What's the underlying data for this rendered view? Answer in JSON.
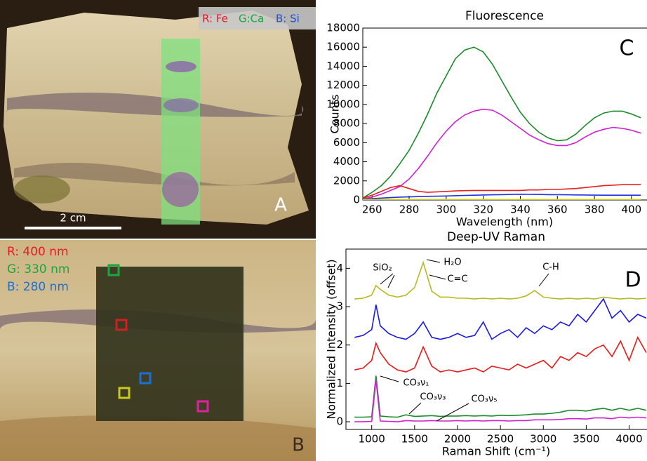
{
  "panels": {
    "a": {
      "label": "A",
      "scale_bar": "2 cm",
      "legend": [
        "R: Fe",
        "G:Ca",
        "B: Si"
      ]
    },
    "b": {
      "label": "B",
      "legend": [
        "R: 400 nm",
        "G: 330 nm",
        "B: 280 nm"
      ]
    }
  },
  "chart_data": [
    {
      "type": "line",
      "title": "Fluorescence",
      "panel_label": "C",
      "x_label": "Wavelength (nm)",
      "y_label": "Counts",
      "xlim": [
        255,
        408
      ],
      "ylim": [
        0,
        18000
      ],
      "xticks": [
        260,
        280,
        300,
        320,
        340,
        360,
        380,
        400
      ],
      "yticks": [
        0,
        2000,
        4000,
        6000,
        8000,
        10000,
        12000,
        14000,
        16000,
        18000
      ],
      "x": [
        255,
        260,
        265,
        270,
        275,
        280,
        285,
        290,
        295,
        300,
        305,
        310,
        315,
        320,
        325,
        330,
        335,
        340,
        345,
        350,
        355,
        360,
        365,
        370,
        375,
        380,
        385,
        390,
        395,
        400,
        405
      ],
      "series": [
        {
          "color": "#1a8a2a",
          "values": [
            200,
            800,
            1500,
            2500,
            3800,
            5200,
            7000,
            9000,
            11200,
            13000,
            14800,
            15700,
            16000,
            15500,
            14200,
            12500,
            10800,
            9200,
            8000,
            7100,
            6500,
            6200,
            6300,
            6900,
            7800,
            8600,
            9100,
            9300,
            9300,
            9000,
            8600
          ]
        },
        {
          "color": "#d020d0",
          "values": [
            100,
            300,
            600,
            1000,
            1400,
            2200,
            3300,
            4600,
            6000,
            7200,
            8200,
            8900,
            9300,
            9500,
            9400,
            8900,
            8200,
            7500,
            6800,
            6300,
            5900,
            5700,
            5700,
            6000,
            6600,
            7100,
            7400,
            7600,
            7500,
            7300,
            7000
          ]
        },
        {
          "color": "#e82020",
          "values": [
            200,
            500,
            900,
            1300,
            1500,
            1200,
            900,
            800,
            850,
            900,
            950,
            980,
            1000,
            1000,
            1000,
            1000,
            1000,
            1000,
            1050,
            1050,
            1100,
            1100,
            1150,
            1200,
            1300,
            1400,
            1500,
            1550,
            1600,
            1600,
            1600
          ]
        },
        {
          "color": "#2030e0",
          "values": [
            100,
            150,
            200,
            250,
            300,
            320,
            350,
            380,
            400,
            420,
            450,
            480,
            500,
            520,
            540,
            560,
            580,
            600,
            590,
            580,
            560,
            550,
            540,
            530,
            520,
            510,
            500,
            500,
            500,
            500,
            500
          ]
        },
        {
          "color": "#c8c820",
          "values": [
            50,
            50,
            50,
            50,
            50,
            50,
            50,
            50,
            50,
            50,
            50,
            50,
            50,
            50,
            50,
            50,
            50,
            50,
            50,
            50,
            50,
            50,
            50,
            50,
            50,
            50,
            50,
            50,
            50,
            50,
            50
          ]
        }
      ]
    },
    {
      "type": "line",
      "title": "Deep-UV Raman",
      "panel_label": "D",
      "x_label": "Raman Shift (cm⁻¹)",
      "y_label": "Normalized Intensity (offset)",
      "xlim": [
        700,
        4200
      ],
      "ylim": [
        -0.2,
        4.5
      ],
      "xticks": [
        1000,
        1500,
        2000,
        2500,
        3000,
        3500,
        4000
      ],
      "yticks": [
        0,
        1,
        2,
        3,
        4
      ],
      "annotations": [
        "SiO₂",
        "H₂O",
        "C=C",
        "C-H",
        "CO₃ν₁",
        "CO₃ν₃",
        "CO₃ν₅"
      ],
      "x": [
        800,
        900,
        1000,
        1050,
        1100,
        1200,
        1300,
        1400,
        1500,
        1600,
        1700,
        1800,
        1900,
        2000,
        2100,
        2200,
        2300,
        2400,
        2500,
        2600,
        2700,
        2800,
        2900,
        3000,
        3100,
        3200,
        3300,
        3400,
        3500,
        3600,
        3700,
        3800,
        3900,
        4000,
        4100,
        4200
      ],
      "series": [
        {
          "color": "#b8b820",
          "values": [
            3.2,
            3.22,
            3.3,
            3.55,
            3.45,
            3.3,
            3.25,
            3.3,
            3.5,
            4.15,
            3.4,
            3.25,
            3.25,
            3.22,
            3.22,
            3.2,
            3.22,
            3.2,
            3.22,
            3.2,
            3.22,
            3.28,
            3.42,
            3.25,
            3.22,
            3.2,
            3.22,
            3.2,
            3.22,
            3.2,
            3.25,
            3.22,
            3.2,
            3.22,
            3.2,
            3.22
          ]
        },
        {
          "color": "#1a1ae0",
          "values": [
            2.2,
            2.25,
            2.4,
            3.05,
            2.5,
            2.3,
            2.2,
            2.15,
            2.3,
            2.6,
            2.2,
            2.15,
            2.2,
            2.3,
            2.2,
            2.25,
            2.6,
            2.15,
            2.3,
            2.4,
            2.2,
            2.45,
            2.3,
            2.5,
            2.4,
            2.6,
            2.5,
            2.8,
            2.6,
            2.9,
            3.2,
            2.7,
            2.9,
            2.6,
            2.8,
            2.7
          ]
        },
        {
          "color": "#e81a1a",
          "values": [
            1.35,
            1.4,
            1.6,
            2.05,
            1.8,
            1.5,
            1.35,
            1.3,
            1.4,
            1.95,
            1.45,
            1.3,
            1.35,
            1.3,
            1.35,
            1.4,
            1.3,
            1.45,
            1.4,
            1.35,
            1.5,
            1.4,
            1.5,
            1.6,
            1.4,
            1.7,
            1.6,
            1.8,
            1.7,
            1.9,
            2.0,
            1.7,
            2.1,
            1.6,
            2.2,
            1.8
          ]
        },
        {
          "color": "#1a8a2a",
          "values": [
            0.12,
            0.12,
            0.13,
            1.2,
            0.15,
            0.13,
            0.12,
            0.18,
            0.14,
            0.15,
            0.16,
            0.14,
            0.15,
            0.15,
            0.16,
            0.15,
            0.16,
            0.15,
            0.17,
            0.16,
            0.17,
            0.18,
            0.2,
            0.2,
            0.22,
            0.25,
            0.3,
            0.3,
            0.28,
            0.32,
            0.35,
            0.3,
            0.35,
            0.3,
            0.35,
            0.3
          ]
        },
        {
          "color": "#d020d0",
          "values": [
            0,
            0,
            0.01,
            1.1,
            0.02,
            0.01,
            0,
            0.03,
            0.02,
            0.02,
            0.03,
            0.02,
            0.02,
            0.03,
            0.02,
            0.03,
            0.02,
            0.03,
            0.03,
            0.02,
            0.03,
            0.03,
            0.05,
            0.05,
            0.05,
            0.06,
            0.08,
            0.08,
            0.07,
            0.1,
            0.1,
            0.08,
            0.12,
            0.1,
            0.12,
            0.1
          ]
        }
      ]
    }
  ]
}
